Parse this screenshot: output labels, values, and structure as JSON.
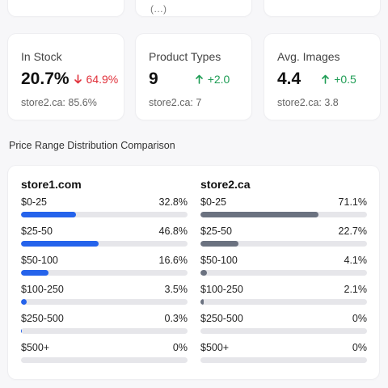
{
  "top_fragment": "(…)",
  "stats": [
    {
      "title": "In Stock",
      "value": "20.7%",
      "delta": "64.9%",
      "direction": "down",
      "compare": "store2.ca: 85.6%"
    },
    {
      "title": "Product Types",
      "value": "9",
      "delta": "+2.0",
      "direction": "up",
      "compare": "store2.ca: 7"
    },
    {
      "title": "Avg. Images",
      "value": "4.4",
      "delta": "+0.5",
      "direction": "up",
      "compare": "store2.ca: 3.8"
    }
  ],
  "distribution": {
    "title": "Price Range Distribution Comparison",
    "stores": [
      {
        "name": "store1.com",
        "color": "#2563eb",
        "ranges": [
          {
            "label": "$0-25",
            "pct": "32.8%",
            "value": 32.8
          },
          {
            "label": "$25-50",
            "pct": "46.8%",
            "value": 46.8
          },
          {
            "label": "$50-100",
            "pct": "16.6%",
            "value": 16.6
          },
          {
            "label": "$100-250",
            "pct": "3.5%",
            "value": 3.5
          },
          {
            "label": "$250-500",
            "pct": "0.3%",
            "value": 0.3
          },
          {
            "label": "$500+",
            "pct": "0%",
            "value": 0
          }
        ]
      },
      {
        "name": "store2.ca",
        "color": "#6b7280",
        "ranges": [
          {
            "label": "$0-25",
            "pct": "71.1%",
            "value": 71.1
          },
          {
            "label": "$25-50",
            "pct": "22.7%",
            "value": 22.7
          },
          {
            "label": "$50-100",
            "pct": "4.1%",
            "value": 4.1
          },
          {
            "label": "$100-250",
            "pct": "2.1%",
            "value": 2.1
          },
          {
            "label": "$250-500",
            "pct": "0%",
            "value": 0
          },
          {
            "label": "$500+",
            "pct": "0%",
            "value": 0
          }
        ]
      }
    ]
  }
}
